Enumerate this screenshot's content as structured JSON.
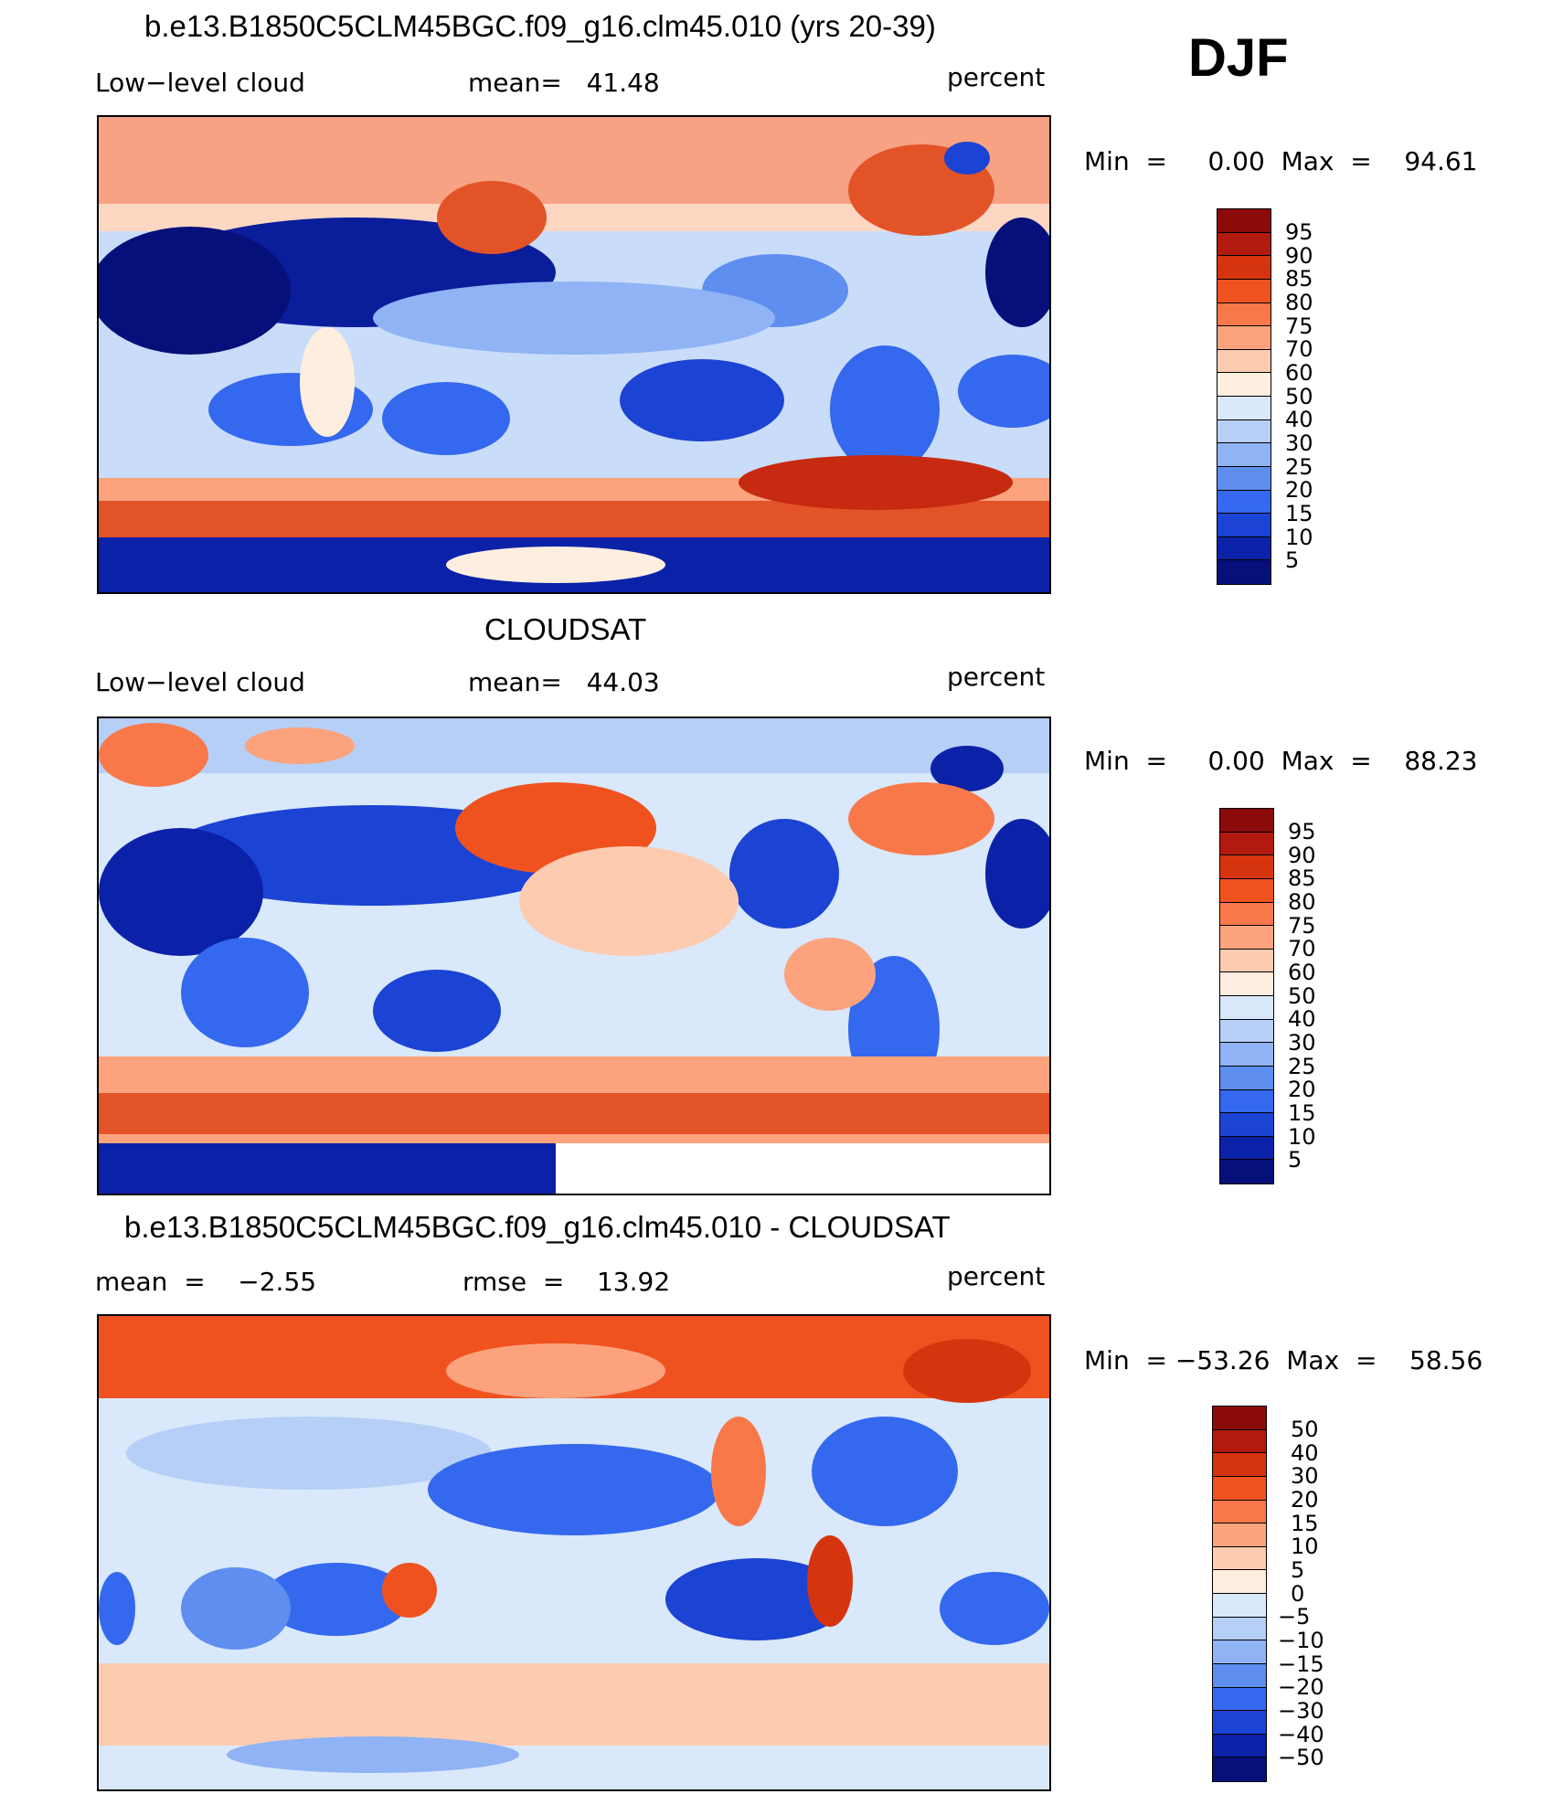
{
  "season": "DJF",
  "panels": [
    {
      "title": "b.e13.B1850C5CLM45BGC.f09_g16.clm45.010 (yrs 20-39)",
      "left_label": "Low−level cloud",
      "center_label": "mean=   41.48",
      "units": "percent",
      "minmax": "Min  =     0.00  Max  =    94.61",
      "legend_labels": [
        "95",
        "90",
        "85",
        "80",
        "75",
        "70",
        "60",
        "50",
        "40",
        "30",
        "25",
        "20",
        "15",
        "10",
        "5"
      ],
      "legend_colors": [
        "#8b0a0a",
        "#b2190f",
        "#d6340f",
        "#f0521f",
        "#f9784a",
        "#fca37e",
        "#fdcbb0",
        "#fdeedf",
        "#d9e8fb",
        "#b6cff7",
        "#8fb3f4",
        "#5e8eef",
        "#3468ee",
        "#1b43d4",
        "#0b22a8",
        "#06107a"
      ]
    },
    {
      "title": "CLOUDSAT",
      "left_label": "Low−level cloud",
      "center_label": "mean=   44.03",
      "units": "percent",
      "minmax": "Min  =     0.00  Max  =    88.23",
      "legend_labels": [
        "95",
        "90",
        "85",
        "80",
        "75",
        "70",
        "60",
        "50",
        "40",
        "30",
        "25",
        "20",
        "15",
        "10",
        "5"
      ],
      "legend_colors": [
        "#8b0a0a",
        "#b2190f",
        "#d6340f",
        "#f0521f",
        "#f9784a",
        "#fca37e",
        "#fdcbb0",
        "#fdeedf",
        "#d9e8fb",
        "#b6cff7",
        "#8fb3f4",
        "#5e8eef",
        "#3468ee",
        "#1b43d4",
        "#0b22a8",
        "#06107a"
      ]
    },
    {
      "title": "b.e13.B1850C5CLM45BGC.f09_g16.clm45.010 - CLOUDSAT",
      "left_label": "mean  =    −2.55",
      "center_label": "rmse  =    13.92",
      "units": "percent",
      "minmax": "Min  = −53.26  Max  =    58.56",
      "legend_labels": [
        "50",
        "40",
        "30",
        "20",
        "15",
        "10",
        "5",
        "0",
        "−5",
        "−10",
        "−15",
        "−20",
        "−30",
        "−40",
        "−50"
      ],
      "legend_colors": [
        "#8b0a0a",
        "#b2190f",
        "#d6340f",
        "#f0521f",
        "#f9784a",
        "#fca37e",
        "#fdcbb0",
        "#fdeedf",
        "#d9e8fb",
        "#b6cff7",
        "#8fb3f4",
        "#5e8eef",
        "#3468ee",
        "#1b43d4",
        "#0b22a8",
        "#06107a"
      ]
    }
  ]
}
